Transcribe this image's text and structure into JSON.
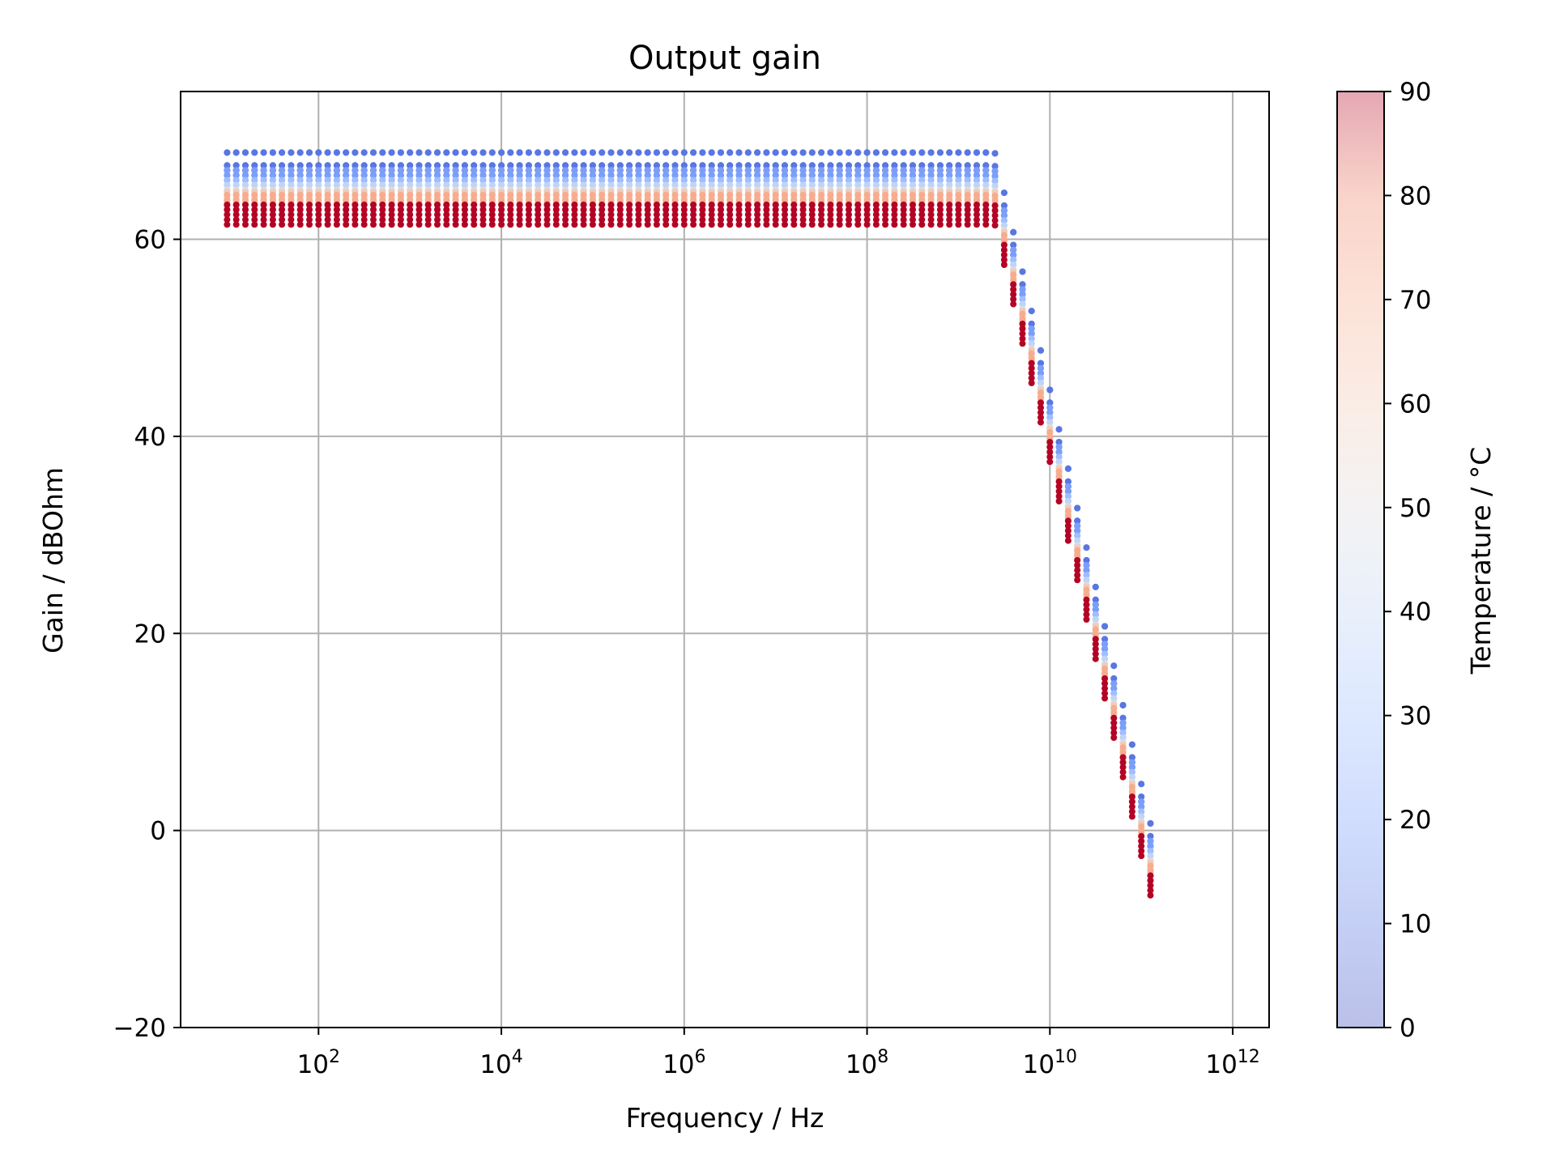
{
  "chart_data": {
    "type": "scatter",
    "title": "Output gain",
    "xlabel": "Frequency / Hz",
    "ylabel": "Gain / dBOhm",
    "xscale": "log",
    "xlim": [
      3.1,
      2500000000000.0
    ],
    "ylim": [
      -20,
      75
    ],
    "x_ticks": [
      {
        "value": 100,
        "label": "10",
        "exp": "2"
      },
      {
        "value": 10000,
        "label": "10",
        "exp": "4"
      },
      {
        "value": 1000000,
        "label": "10",
        "exp": "6"
      },
      {
        "value": 100000000,
        "label": "10",
        "exp": "8"
      },
      {
        "value": 10000000000,
        "label": "10",
        "exp": "10"
      },
      {
        "value": 1000000000000,
        "label": "10",
        "exp": "12"
      }
    ],
    "y_ticks": [
      {
        "value": -20,
        "label": "−20"
      },
      {
        "value": 0,
        "label": "0"
      },
      {
        "value": 20,
        "label": "20"
      },
      {
        "value": 40,
        "label": "40"
      },
      {
        "value": 60,
        "label": "60"
      }
    ],
    "grid": true,
    "colormap": "coolwarm",
    "colorbar": {
      "label": "Temperature / °C",
      "range": [
        0,
        90
      ],
      "ticks": [
        "0",
        "10",
        "20",
        "30",
        "40",
        "50",
        "60",
        "70",
        "80",
        "90"
      ],
      "alpha": 0.35
    },
    "marker_size": 4,
    "series_model": {
      "temperatures_degC": [
        0,
        10,
        20,
        30,
        40,
        50,
        60,
        70,
        80,
        90
      ],
      "temperature_colors": [
        "#3b4cc0",
        "#5977e3",
        "#7b9ff9",
        "#9ebeff",
        "#c0d4f5",
        "#dddcdc",
        "#f2cbb7",
        "#f7ac8e",
        "#ee8468",
        "#b40426"
      ],
      "freq_start_hz": 10,
      "points_per_decade": 10,
      "low_freq_gain_db": {
        "0": [
          68.8,
          67.5,
          67.0,
          66.5
        ],
        "10": [
          68.8,
          67.5,
          67.0,
          66.5
        ],
        "20": [
          67.0,
          66.5,
          66.0
        ],
        "30": [
          66.0,
          65.5,
          65.0
        ],
        "40": [
          65.5,
          65.0,
          64.5
        ],
        "50": [
          65.0,
          64.5,
          64.0
        ],
        "60": [
          64.8,
          64.2,
          63.8
        ],
        "70": [
          64.5,
          64.0,
          63.5
        ],
        "80": [
          63.5,
          63.0
        ],
        "90": [
          63.5,
          63.0,
          62.5,
          62.0,
          61.5
        ]
      },
      "corner_freq_hz": 2500000000,
      "rolloff_db_per_decade": -40,
      "max_freq_hz": 130000000000
    }
  }
}
